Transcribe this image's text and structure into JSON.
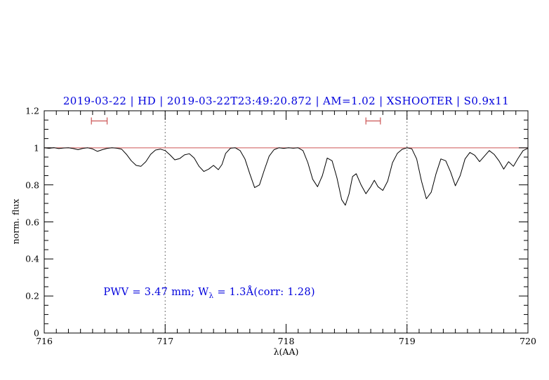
{
  "colors": {
    "accent_blue": "#0000dd",
    "reference_red": "#cc5555",
    "marker_red": "#cc5555",
    "spectrum_black": "#000000",
    "dotted_line": "#444444"
  },
  "chart_data": {
    "type": "line",
    "title": "2019-03-22 | HD | 2019-03-22T23:49:20.872 | AM=1.02 | XSHOOTER | S0.9x11",
    "xlabel": "λ(AA)",
    "ylabel": "norm. flux",
    "xlim": [
      716,
      720
    ],
    "ylim": [
      0,
      1.2
    ],
    "x_ticks": [
      716,
      717,
      718,
      719,
      720
    ],
    "y_ticks": [
      0,
      0.2,
      0.4,
      0.6,
      0.8,
      1,
      1.2
    ],
    "y_tick_labels": [
      "0",
      "0.2",
      "0.4",
      "0.6",
      "0.8",
      "1",
      "1.2"
    ],
    "x_minor_step": 0.1,
    "y_minor_step": 0.05,
    "dotted_vlines": [
      717,
      719
    ],
    "reference_line_y": 1.0,
    "markers": [
      {
        "type": "errorbar-h",
        "y": 1.145,
        "x_from": 716.39,
        "x_to": 716.52
      },
      {
        "type": "errorbar-h",
        "y": 1.145,
        "x_from": 718.66,
        "x_to": 718.78
      }
    ],
    "annotation": {
      "prefix": "PWV = 3.47 mm; W",
      "sub": "λ",
      "suffix": " = 1.3Å(corr: 1.28)",
      "data_x": 716.49,
      "data_y": 0.25
    },
    "series": [
      {
        "name": "normalized telluric spectrum",
        "points": [
          [
            716.0,
            1.0
          ],
          [
            716.04,
            0.997
          ],
          [
            716.08,
            1.001
          ],
          [
            716.12,
            0.996
          ],
          [
            716.16,
            0.999
          ],
          [
            716.2,
            1.0
          ],
          [
            716.24,
            0.996
          ],
          [
            716.28,
            0.99
          ],
          [
            716.32,
            0.997
          ],
          [
            716.36,
            1.0
          ],
          [
            716.4,
            0.994
          ],
          [
            716.44,
            0.981
          ],
          [
            716.48,
            0.99
          ],
          [
            716.52,
            0.997
          ],
          [
            716.56,
            1.0
          ],
          [
            716.6,
            0.998
          ],
          [
            716.64,
            0.993
          ],
          [
            716.68,
            0.965
          ],
          [
            716.72,
            0.93
          ],
          [
            716.76,
            0.905
          ],
          [
            716.8,
            0.9
          ],
          [
            716.84,
            0.925
          ],
          [
            716.88,
            0.965
          ],
          [
            716.92,
            0.988
          ],
          [
            716.96,
            0.993
          ],
          [
            717.0,
            0.985
          ],
          [
            717.04,
            0.962
          ],
          [
            717.08,
            0.935
          ],
          [
            717.12,
            0.942
          ],
          [
            717.16,
            0.962
          ],
          [
            717.2,
            0.968
          ],
          [
            717.24,
            0.945
          ],
          [
            717.28,
            0.9
          ],
          [
            717.32,
            0.872
          ],
          [
            717.36,
            0.885
          ],
          [
            717.4,
            0.905
          ],
          [
            717.44,
            0.882
          ],
          [
            717.47,
            0.91
          ],
          [
            717.5,
            0.97
          ],
          [
            717.54,
            0.998
          ],
          [
            717.58,
            1.0
          ],
          [
            717.62,
            0.985
          ],
          [
            717.66,
            0.94
          ],
          [
            717.7,
            0.86
          ],
          [
            717.74,
            0.785
          ],
          [
            717.78,
            0.8
          ],
          [
            717.82,
            0.88
          ],
          [
            717.86,
            0.955
          ],
          [
            717.9,
            0.99
          ],
          [
            717.94,
            1.0
          ],
          [
            717.98,
            0.997
          ],
          [
            718.02,
            1.0
          ],
          [
            718.06,
            0.998
          ],
          [
            718.1,
            1.0
          ],
          [
            718.14,
            0.985
          ],
          [
            718.18,
            0.92
          ],
          [
            718.22,
            0.83
          ],
          [
            718.26,
            0.79
          ],
          [
            718.3,
            0.85
          ],
          [
            718.34,
            0.945
          ],
          [
            718.38,
            0.93
          ],
          [
            718.42,
            0.84
          ],
          [
            718.46,
            0.72
          ],
          [
            718.49,
            0.69
          ],
          [
            718.52,
            0.75
          ],
          [
            718.55,
            0.845
          ],
          [
            718.58,
            0.86
          ],
          [
            718.62,
            0.8
          ],
          [
            718.66,
            0.752
          ],
          [
            718.7,
            0.79
          ],
          [
            718.73,
            0.825
          ],
          [
            718.76,
            0.79
          ],
          [
            718.8,
            0.77
          ],
          [
            718.84,
            0.82
          ],
          [
            718.88,
            0.92
          ],
          [
            718.92,
            0.97
          ],
          [
            718.96,
            0.992
          ],
          [
            719.0,
            1.0
          ],
          [
            719.04,
            0.995
          ],
          [
            719.08,
            0.94
          ],
          [
            719.12,
            0.82
          ],
          [
            719.16,
            0.725
          ],
          [
            719.2,
            0.76
          ],
          [
            719.24,
            0.86
          ],
          [
            719.28,
            0.94
          ],
          [
            719.32,
            0.93
          ],
          [
            719.36,
            0.87
          ],
          [
            719.4,
            0.795
          ],
          [
            719.44,
            0.85
          ],
          [
            719.48,
            0.94
          ],
          [
            719.52,
            0.975
          ],
          [
            719.56,
            0.96
          ],
          [
            719.6,
            0.925
          ],
          [
            719.64,
            0.955
          ],
          [
            719.68,
            0.985
          ],
          [
            719.72,
            0.965
          ],
          [
            719.76,
            0.93
          ],
          [
            719.8,
            0.885
          ],
          [
            719.84,
            0.925
          ],
          [
            719.88,
            0.9
          ],
          [
            719.92,
            0.945
          ],
          [
            719.96,
            0.985
          ],
          [
            720.0,
            0.998
          ]
        ]
      }
    ]
  }
}
